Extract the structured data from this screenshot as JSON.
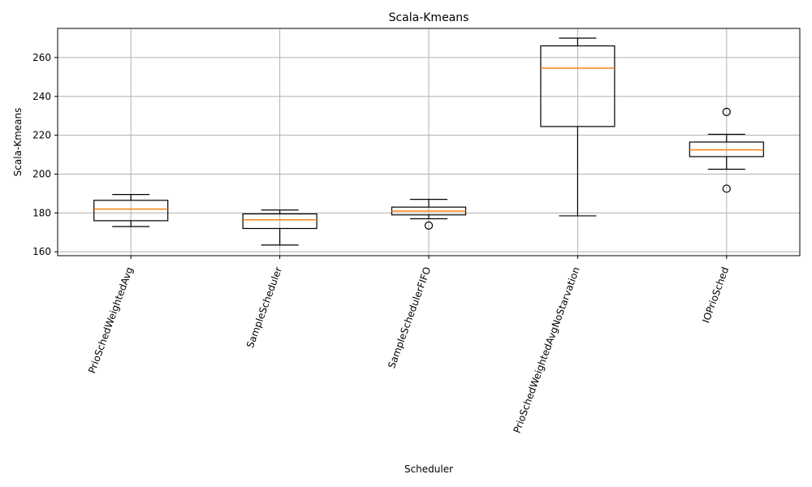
{
  "chart_data": {
    "type": "box",
    "title": "Scala-Kmeans",
    "xlabel": "Scheduler",
    "ylabel": "Scala-Kmeans",
    "ylim": [
      158,
      275
    ],
    "yticks": [
      160,
      180,
      200,
      220,
      240,
      260
    ],
    "grid": true,
    "categories": [
      "PrioSchedWeightedAvg",
      "SampleScheduler",
      "SampleSchedulerFIFO",
      "PrioSchedWeightedAvgNoStarvation",
      "IOPrioSched"
    ],
    "boxes": [
      {
        "whisker_low": 173,
        "q1": 176,
        "median": 182,
        "q3": 186.5,
        "whisker_high": 189.5,
        "fliers": []
      },
      {
        "whisker_low": 163.5,
        "q1": 172,
        "median": 176.5,
        "q3": 179.5,
        "whisker_high": 181.5,
        "fliers": []
      },
      {
        "whisker_low": 177,
        "q1": 179,
        "median": 181,
        "q3": 183,
        "whisker_high": 187,
        "fliers": [
          173.5
        ]
      },
      {
        "whisker_low": 178.5,
        "q1": 224.5,
        "median": 254.5,
        "q3": 266,
        "whisker_high": 270,
        "fliers": []
      },
      {
        "whisker_low": 202.5,
        "q1": 209,
        "median": 212.5,
        "q3": 216.5,
        "whisker_high": 220.5,
        "fliers": [
          232,
          192.5
        ]
      }
    ]
  }
}
